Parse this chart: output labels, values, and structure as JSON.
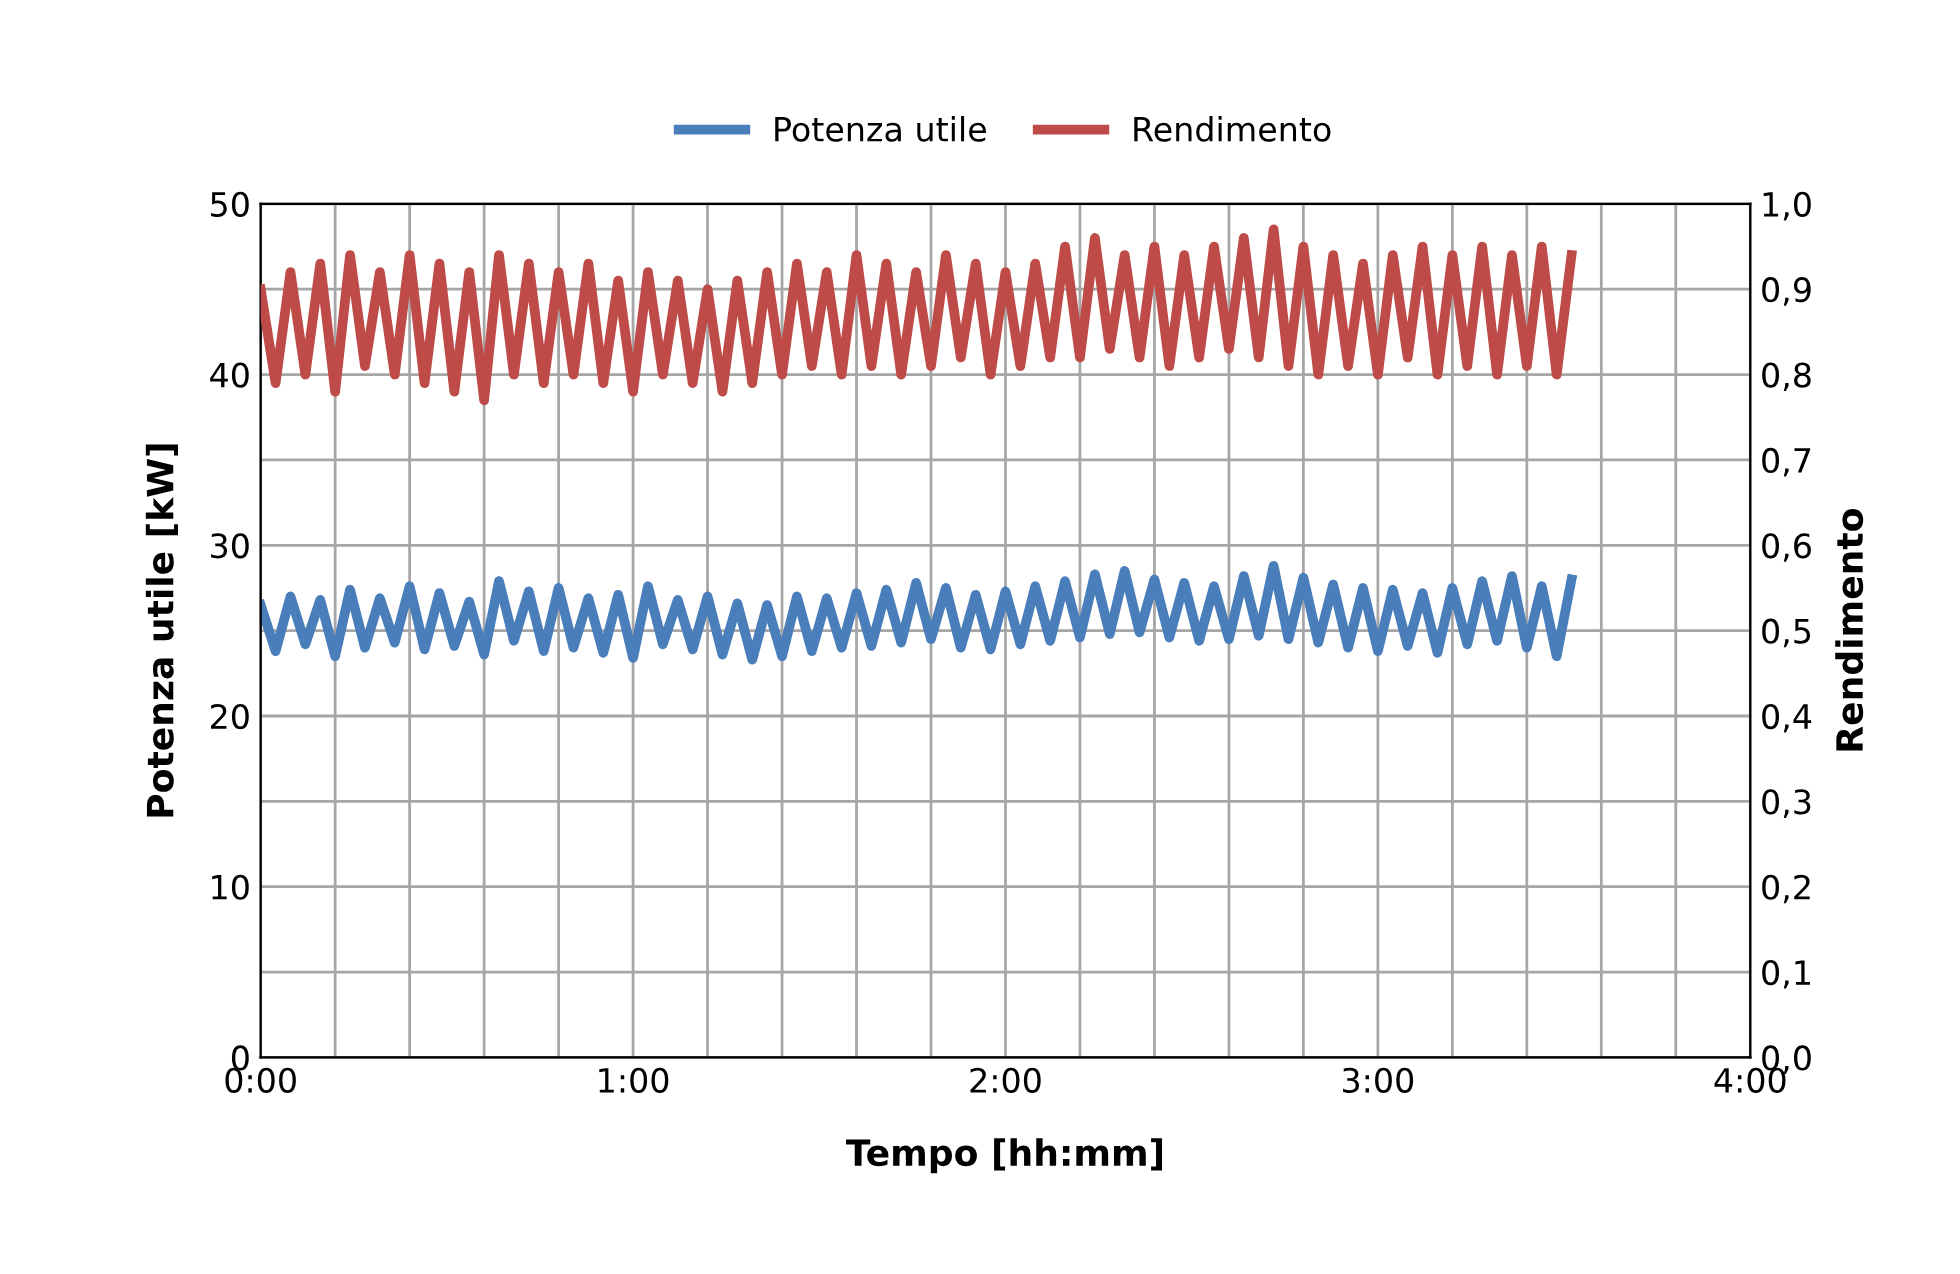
{
  "chart_data": {
    "type": "line",
    "xlabel": "Tempo [hh:mm]",
    "ylabel": "Potenza utile [kW]",
    "y2label": "Rendimento",
    "x": [
      0,
      0.04,
      0.08,
      0.12,
      0.16,
      0.2,
      0.24,
      0.28,
      0.32,
      0.36,
      0.4,
      0.44,
      0.48,
      0.52,
      0.56,
      0.6,
      0.64,
      0.68,
      0.72,
      0.76,
      0.8,
      0.84,
      0.88,
      0.92,
      0.96,
      1.0,
      1.04,
      1.08,
      1.12,
      1.16,
      1.2,
      1.24,
      1.28,
      1.32,
      1.36,
      1.4,
      1.44,
      1.48,
      1.52,
      1.56,
      1.6,
      1.64,
      1.68,
      1.72,
      1.76,
      1.8,
      1.84,
      1.88,
      1.92,
      1.96,
      2.0,
      2.04,
      2.08,
      2.12,
      2.16,
      2.2,
      2.24,
      2.28,
      2.32,
      2.36,
      2.4,
      2.44,
      2.48,
      2.52,
      2.56,
      2.6,
      2.64,
      2.68,
      2.72,
      2.76,
      2.8,
      2.84,
      2.88,
      2.92,
      2.96,
      3.0,
      3.04,
      3.08,
      3.12,
      3.16,
      3.2,
      3.24,
      3.28,
      3.32,
      3.36,
      3.4,
      3.44,
      3.48,
      3.52
    ],
    "series": [
      {
        "name": "Potenza utile",
        "color": "#4a7ebb",
        "values": [
          26.5,
          23.8,
          27.0,
          24.2,
          26.8,
          23.5,
          27.4,
          24.0,
          26.9,
          24.3,
          27.6,
          23.9,
          27.2,
          24.1,
          26.7,
          23.6,
          27.9,
          24.4,
          27.3,
          23.8,
          27.5,
          24.0,
          26.9,
          23.7,
          27.1,
          23.4,
          27.6,
          24.2,
          26.8,
          23.9,
          27.0,
          23.6,
          26.6,
          23.3,
          26.5,
          23.5,
          27.0,
          23.8,
          26.9,
          24.0,
          27.2,
          24.1,
          27.4,
          24.3,
          27.8,
          24.5,
          27.5,
          24.0,
          27.1,
          23.9,
          27.3,
          24.2,
          27.6,
          24.4,
          27.9,
          24.6,
          28.3,
          24.8,
          28.5,
          24.9,
          28.0,
          24.6,
          27.8,
          24.4,
          27.6,
          24.5,
          28.2,
          24.7,
          28.8,
          24.5,
          28.1,
          24.3,
          27.7,
          24.0,
          27.5,
          23.8,
          27.4,
          24.1,
          27.2,
          23.7,
          27.5,
          24.2,
          27.9,
          24.4,
          28.2,
          24.0,
          27.6,
          23.5,
          28.0
        ]
      },
      {
        "name": "Rendimento",
        "color": "#be4b48",
        "axis": "y2",
        "values": [
          0.9,
          0.79,
          0.92,
          0.8,
          0.93,
          0.78,
          0.94,
          0.81,
          0.92,
          0.8,
          0.94,
          0.79,
          0.93,
          0.78,
          0.92,
          0.77,
          0.94,
          0.8,
          0.93,
          0.79,
          0.92,
          0.8,
          0.93,
          0.79,
          0.91,
          0.78,
          0.92,
          0.8,
          0.91,
          0.79,
          0.9,
          0.78,
          0.91,
          0.79,
          0.92,
          0.8,
          0.93,
          0.81,
          0.92,
          0.8,
          0.94,
          0.81,
          0.93,
          0.8,
          0.92,
          0.81,
          0.94,
          0.82,
          0.93,
          0.8,
          0.92,
          0.81,
          0.93,
          0.82,
          0.95,
          0.82,
          0.96,
          0.83,
          0.94,
          0.82,
          0.95,
          0.81,
          0.94,
          0.82,
          0.95,
          0.83,
          0.96,
          0.82,
          0.97,
          0.81,
          0.95,
          0.8,
          0.94,
          0.81,
          0.93,
          0.8,
          0.94,
          0.82,
          0.95,
          0.8,
          0.94,
          0.81,
          0.95,
          0.8,
          0.94,
          0.81,
          0.95,
          0.8,
          0.94
        ]
      }
    ],
    "xlim": [
      0,
      4
    ],
    "ylim": [
      0,
      50
    ],
    "y2lim": [
      0,
      1
    ],
    "xticks": [
      {
        "value": 0,
        "label": "0:00"
      },
      {
        "value": 0.2,
        "label": null
      },
      {
        "value": 0.4,
        "label": null
      },
      {
        "value": 0.6,
        "label": null
      },
      {
        "value": 0.8,
        "label": null
      },
      {
        "value": 1,
        "label": "1:00"
      },
      {
        "value": 1.2,
        "label": null
      },
      {
        "value": 1.4,
        "label": null
      },
      {
        "value": 1.6,
        "label": null
      },
      {
        "value": 1.8,
        "label": null
      },
      {
        "value": 2,
        "label": "2:00"
      },
      {
        "value": 2.2,
        "label": null
      },
      {
        "value": 2.4,
        "label": null
      },
      {
        "value": 2.6,
        "label": null
      },
      {
        "value": 2.8,
        "label": null
      },
      {
        "value": 3,
        "label": "3:00"
      },
      {
        "value": 3.2,
        "label": null
      },
      {
        "value": 3.4,
        "label": null
      },
      {
        "value": 3.6,
        "label": null
      },
      {
        "value": 3.8,
        "label": null
      },
      {
        "value": 4,
        "label": "4:00"
      }
    ],
    "yticks": [
      0,
      {
        "value": 5,
        "label": null
      },
      10,
      {
        "value": 15,
        "label": null
      },
      20,
      {
        "value": 25,
        "label": null
      },
      30,
      {
        "value": 35,
        "label": null
      },
      40,
      {
        "value": 45,
        "label": null
      },
      50
    ],
    "y2ticks": [
      {
        "value": 0,
        "label": "0,0"
      },
      {
        "value": 0.1,
        "label": "0,1"
      },
      {
        "value": 0.2,
        "label": "0,2"
      },
      {
        "value": 0.3,
        "label": "0,3"
      },
      {
        "value": 0.4,
        "label": "0,4"
      },
      {
        "value": 0.5,
        "label": "0,5"
      },
      {
        "value": 0.6,
        "label": "0,6"
      },
      {
        "value": 0.7,
        "label": "0,7"
      },
      {
        "value": 0.8,
        "label": "0,8"
      },
      {
        "value": 0.9,
        "label": "0,9"
      },
      {
        "value": 1,
        "label": "1,0"
      }
    ],
    "grid": true,
    "legend": "top",
    "marker": "none",
    "line_style": "solid"
  }
}
